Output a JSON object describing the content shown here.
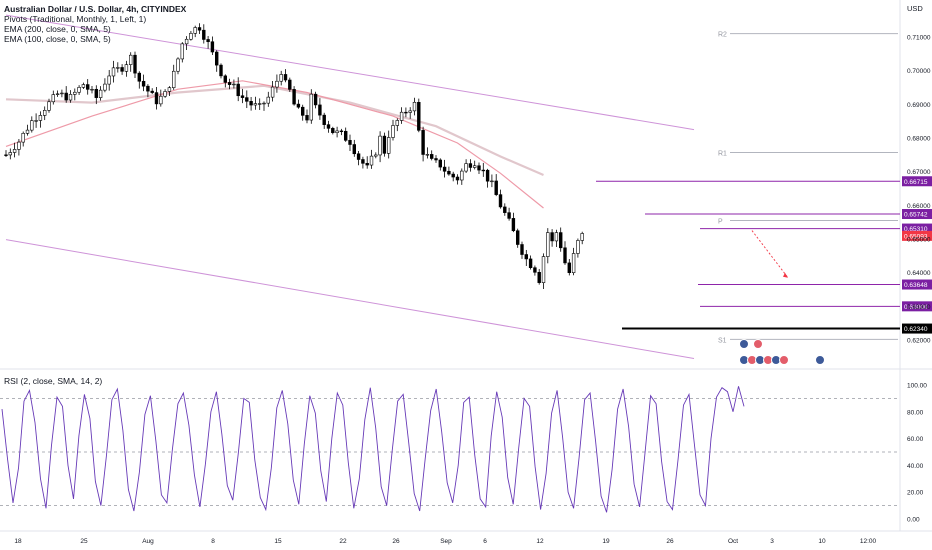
{
  "header": {
    "title": "Australian Dollar / U.S. Dollar, 4h, CITYINDEX",
    "indicators": [
      "Pivots (Traditional, Monthly, 1, Left, 1)",
      "EMA (200, close, 0, SMA, 5)",
      "EMA (100, close, 0, SMA, 5)"
    ],
    "currency": "USD"
  },
  "colors": {
    "candle": "#000000",
    "pivot_line": "#b2b5be",
    "level_line": "#8e24aa",
    "level_badge": "#7b1fa2",
    "ema200": "#e1c7cc",
    "ema100": "#ee9aa8",
    "channel": "#ce93d8",
    "rsi_line": "#673ab7",
    "current_price": "#f23645",
    "black_level": "#000000",
    "arrow": "#f23645"
  },
  "chart_data": [
    {
      "type": "candlestick",
      "title": "Australian Dollar / U.S. Dollar, 4h, CITYINDEX",
      "y_axis": {
        "ticks": [
          "0.71000",
          "0.70000",
          "0.69000",
          "0.68000",
          "0.67000",
          "0.66000",
          "0.65000",
          "0.64000",
          "0.63000",
          "0.62000"
        ],
        "ylim": [
          0.6175,
          0.7195
        ],
        "side": "right"
      },
      "x_axis": {
        "ticks": [
          "18",
          "25",
          "Aug",
          "8",
          "15",
          "22",
          "26",
          "Sep",
          "6",
          "12",
          "19",
          "26",
          "Oct",
          "3",
          "10",
          "12:00"
        ]
      },
      "price_path": [
        [
          0,
          0.675
        ],
        [
          3,
          0.679
        ],
        [
          6,
          0.685
        ],
        [
          9,
          0.689
        ],
        [
          12,
          0.693
        ],
        [
          15,
          0.692
        ],
        [
          18,
          0.696
        ],
        [
          21,
          0.692
        ],
        [
          24,
          0.699
        ],
        [
          27,
          0.701
        ],
        [
          29,
          0.704
        ],
        [
          31,
          0.697
        ],
        [
          33,
          0.694
        ],
        [
          35,
          0.691
        ],
        [
          37,
          0.693
        ],
        [
          39,
          0.699
        ],
        [
          41,
          0.708
        ],
        [
          43,
          0.712
        ],
        [
          45,
          0.713
        ],
        [
          47,
          0.708
        ],
        [
          49,
          0.702
        ],
        [
          51,
          0.697
        ],
        [
          53,
          0.695
        ],
        [
          55,
          0.692
        ],
        [
          57,
          0.69
        ],
        [
          59,
          0.689
        ],
        [
          61,
          0.692
        ],
        [
          63,
          0.697
        ],
        [
          64,
          0.7
        ],
        [
          65,
          0.696
        ],
        [
          66,
          0.694
        ],
        [
          67,
          0.69
        ],
        [
          68,
          0.688
        ],
        [
          70,
          0.686
        ],
        [
          71,
          0.692
        ],
        [
          72,
          0.689
        ],
        [
          74,
          0.685
        ],
        [
          76,
          0.682
        ],
        [
          78,
          0.681
        ],
        [
          80,
          0.679
        ],
        [
          82,
          0.674
        ],
        [
          84,
          0.671
        ],
        [
          86,
          0.676
        ],
        [
          87,
          0.68
        ],
        [
          88,
          0.676
        ],
        [
          89,
          0.681
        ],
        [
          91,
          0.685
        ],
        [
          93,
          0.688
        ],
        [
          95,
          0.69
        ],
        [
          96,
          0.682
        ],
        [
          97,
          0.676
        ],
        [
          99,
          0.673
        ],
        [
          101,
          0.672
        ],
        [
          103,
          0.669
        ],
        [
          105,
          0.668
        ],
        [
          107,
          0.672
        ],
        [
          109,
          0.673
        ],
        [
          111,
          0.67
        ],
        [
          112,
          0.668
        ],
        [
          113,
          0.666
        ],
        [
          115,
          0.66
        ],
        [
          117,
          0.655
        ],
        [
          119,
          0.649
        ],
        [
          121,
          0.644
        ],
        [
          123,
          0.641
        ],
        [
          124,
          0.638
        ],
        [
          125,
          0.645
        ],
        [
          126,
          0.652
        ],
        [
          127,
          0.649
        ],
        [
          128,
          0.652
        ],
        [
          129,
          0.648
        ],
        [
          130,
          0.643
        ],
        [
          131,
          0.64
        ],
        [
          132,
          0.645
        ],
        [
          133,
          0.649
        ],
        [
          134,
          0.651
        ]
      ],
      "ema200": [
        [
          0,
          0.6915
        ],
        [
          20,
          0.6905
        ],
        [
          40,
          0.6935
        ],
        [
          60,
          0.6955
        ],
        [
          80,
          0.6905
        ],
        [
          100,
          0.6835
        ],
        [
          115,
          0.6745
        ],
        [
          125,
          0.669
        ]
      ],
      "ema100": [
        [
          0,
          0.6775
        ],
        [
          20,
          0.6865
        ],
        [
          40,
          0.6945
        ],
        [
          55,
          0.697
        ],
        [
          70,
          0.6935
        ],
        [
          90,
          0.6865
        ],
        [
          105,
          0.6785
        ],
        [
          115,
          0.6695
        ],
        [
          125,
          0.6592
        ]
      ],
      "channel_upper": [
        [
          0,
          0.7165
        ],
        [
          160,
          0.6825
        ]
      ],
      "channel_lower": [
        [
          0,
          0.6498
        ],
        [
          160,
          0.6145
        ]
      ],
      "pivots": [
        {
          "label": "R2",
          "value": 0.711
        },
        {
          "label": "R1",
          "value": 0.6757
        },
        {
          "label": "P",
          "value": 0.6555
        },
        {
          "label": "S1",
          "value": 0.6202
        }
      ],
      "levels": [
        {
          "value": 0.66715,
          "label": "0.66715",
          "color": "#7b1fa2"
        },
        {
          "value": 0.65742,
          "label": "0.65742",
          "color": "#7b1fa2"
        },
        {
          "value": 0.6531,
          "label": "0.65310",
          "color": "#7b1fa2"
        },
        {
          "value": 0.63648,
          "label": "0.63648",
          "color": "#7b1fa2"
        },
        {
          "value": 0.63,
          "label": "0.63000",
          "color": "#7b1fa2"
        },
        {
          "value": 0.6234,
          "label": "0.62340",
          "color": "#000000"
        }
      ],
      "current_price": {
        "value": 0.65093,
        "label": "0.65093"
      }
    },
    {
      "type": "line",
      "title": "RSI (2, close, SMA, 14, 2)",
      "y_axis": {
        "ticks": [
          "100.00",
          "80.00",
          "60.00",
          "40.00",
          "20.00",
          "0.00"
        ],
        "ylim": [
          -3,
          103
        ]
      },
      "bands": [
        90,
        50,
        10
      ],
      "series": [
        {
          "values": [
            82,
            45,
            12,
            38,
            88,
            96,
            72,
            30,
            8,
            55,
            91,
            84,
            40,
            15,
            62,
            93,
            75,
            28,
            10,
            47,
            89,
            97,
            66,
            22,
            6,
            35,
            78,
            92,
            58,
            18,
            12,
            52,
            86,
            94,
            70,
            33,
            9,
            41,
            80,
            95,
            63,
            25,
            14,
            49,
            90,
            87,
            44,
            16,
            7,
            38,
            83,
            96,
            71,
            29,
            11,
            56,
            92,
            79,
            36,
            13,
            60,
            94,
            85,
            42,
            8,
            30,
            74,
            98,
            68,
            24,
            10,
            51,
            88,
            93,
            57,
            19,
            6,
            45,
            81,
            97,
            65,
            27,
            12,
            40,
            87,
            91,
            48,
            15,
            9,
            62,
            95,
            76,
            31,
            11,
            53,
            90,
            84,
            39,
            7,
            34,
            79,
            96,
            61,
            20,
            8,
            46,
            89,
            94,
            58,
            17,
            5,
            37,
            82,
            97,
            69,
            26,
            9,
            50,
            92,
            86,
            43,
            13,
            7,
            44,
            85,
            93,
            55,
            18,
            10,
            60,
            91,
            98,
            95,
            80,
            99,
            84
          ]
        }
      ]
    }
  ],
  "rsi_legend": "RSI (2, close, SMA, 14, 2)"
}
